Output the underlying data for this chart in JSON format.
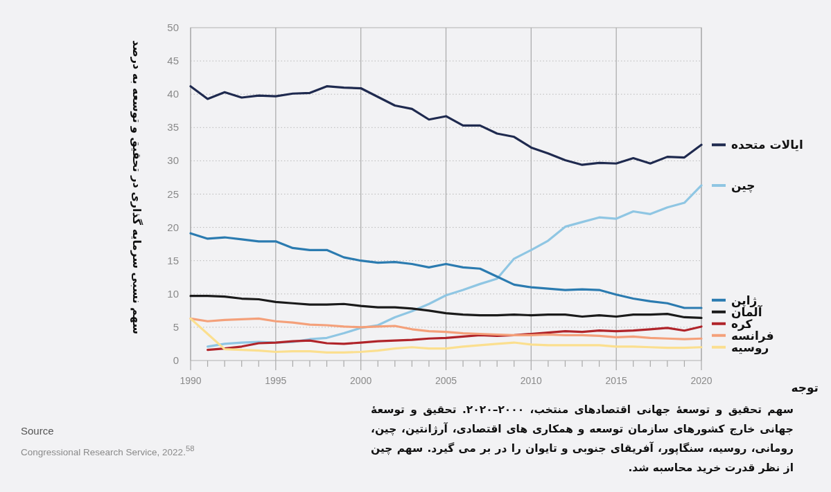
{
  "chart_data": {
    "type": "line",
    "ylabel": "سهم نسبی سرمایه گذاری در تحقیق و توسعه به درصد",
    "annotations": [
      "توجه",
      "سهم تحقیق و توسعهٔ جهانی اقتصادهای منتخب، ۲۰۰۰–۲۰۲۰. تحقیق و توسعهٔ جهانی خارج کشورهای سازمان توسعه و همکاری های اقتصادی، آرژانتین، چین، رومانی، روسیه، سنگاپور، آفریقای جنوبی و تایوان را در بر می گیرد. سهم چین از نظر قدرت خرید محاسبه شد.",
      "Source",
      "Congressional Research Service, 2022.$^{58}$"
    ],
    "x": [
      1990,
      1991,
      1992,
      1993,
      1994,
      1995,
      1996,
      1997,
      1998,
      1999,
      2000,
      2001,
      2002,
      2003,
      2004,
      2005,
      2006,
      2007,
      2008,
      2009,
      2010,
      2011,
      2012,
      2013,
      2014,
      2015,
      2016,
      2017,
      2018,
      2019,
      2020
    ],
    "series": [
      {
        "name": "ایالات متحده",
        "color": "#1f2a4f",
        "values": [
          41.2,
          39.3,
          40.3,
          39.5,
          39.8,
          39.7,
          40.1,
          40.2,
          41.2,
          41.0,
          40.9,
          39.6,
          38.3,
          37.8,
          36.2,
          36.7,
          35.3,
          35.3,
          34.1,
          33.6,
          32.0,
          31.1,
          30.1,
          29.4,
          29.7,
          29.6,
          30.4,
          29.6,
          30.6,
          30.5,
          32.4
        ]
      },
      {
        "name": "چین",
        "color": "#8fc6e3",
        "values": [
          null,
          2.1,
          2.5,
          2.7,
          2.8,
          2.7,
          2.8,
          3.2,
          3.4,
          4.1,
          4.9,
          5.3,
          6.5,
          7.4,
          8.5,
          9.8,
          10.6,
          11.5,
          12.3,
          15.3,
          16.6,
          18.0,
          20.1,
          20.8,
          21.5,
          21.3,
          22.4,
          22.0,
          23.0,
          23.7,
          26.3
        ]
      },
      {
        "name": "ژاپن",
        "color": "#2b7bb0",
        "values": [
          19.1,
          18.3,
          18.5,
          18.2,
          17.9,
          17.9,
          16.9,
          16.6,
          16.6,
          15.5,
          15.0,
          14.7,
          14.8,
          14.5,
          14.0,
          14.5,
          14.0,
          13.8,
          12.6,
          11.4,
          11.0,
          10.8,
          10.6,
          10.7,
          10.6,
          9.9,
          9.3,
          8.9,
          8.6,
          7.9,
          7.9
        ]
      },
      {
        "name": "آلمان",
        "color": "#1a1a1a",
        "values": [
          9.7,
          9.7,
          9.6,
          9.3,
          9.2,
          8.8,
          8.6,
          8.4,
          8.4,
          8.5,
          8.2,
          8.0,
          8.0,
          7.8,
          7.5,
          7.1,
          6.9,
          6.8,
          6.8,
          6.9,
          6.8,
          6.9,
          6.9,
          6.6,
          6.8,
          6.6,
          6.9,
          6.9,
          7.0,
          6.5,
          6.4
        ]
      },
      {
        "name": "کره",
        "color": "#b0242a",
        "values": [
          null,
          1.6,
          1.8,
          2.1,
          2.6,
          2.7,
          2.9,
          3.0,
          2.6,
          2.5,
          2.7,
          2.9,
          3.0,
          3.1,
          3.3,
          3.4,
          3.6,
          3.8,
          3.7,
          3.8,
          4.0,
          4.2,
          4.4,
          4.3,
          4.5,
          4.4,
          4.5,
          4.7,
          4.9,
          4.5,
          5.1
        ]
      },
      {
        "name": "فرانسه",
        "color": "#f4a07a",
        "values": [
          6.3,
          5.9,
          6.1,
          6.2,
          6.3,
          5.9,
          5.7,
          5.4,
          5.3,
          5.1,
          5.0,
          5.1,
          5.2,
          4.7,
          4.4,
          4.3,
          4.1,
          4.0,
          3.9,
          3.8,
          3.8,
          3.9,
          3.8,
          3.8,
          3.7,
          3.5,
          3.6,
          3.4,
          3.3,
          3.2,
          3.3
        ]
      },
      {
        "name": "روسیه",
        "color": "#fbdf8f",
        "values": [
          6.3,
          4.0,
          1.7,
          1.6,
          1.5,
          1.3,
          1.4,
          1.4,
          1.2,
          1.2,
          1.3,
          1.5,
          1.8,
          2.0,
          1.8,
          1.8,
          2.1,
          2.3,
          2.5,
          2.7,
          2.4,
          2.3,
          2.3,
          2.3,
          2.3,
          2.1,
          2.1,
          2.0,
          1.9,
          1.9,
          2.0
        ]
      }
    ],
    "xlim": [
      1990,
      2020
    ],
    "ylim": [
      0,
      50
    ],
    "xticks": [
      1990,
      {
        "value": 1991,
        "label": null
      },
      {
        "value": 1992,
        "label": null
      },
      {
        "value": 1993,
        "label": null
      },
      {
        "value": 1994,
        "label": null
      },
      1995,
      {
        "value": 1996,
        "label": null
      },
      {
        "value": 1997,
        "label": null
      },
      {
        "value": 1998,
        "label": null
      },
      {
        "value": 1999,
        "label": null
      },
      2000,
      {
        "value": 2001,
        "label": null
      },
      {
        "value": 2002,
        "label": null
      },
      {
        "value": 2003,
        "label": null
      },
      {
        "value": 2004,
        "label": null
      },
      2005,
      {
        "value": 2006,
        "label": null
      },
      {
        "value": 2007,
        "label": null
      },
      {
        "value": 2008,
        "label": null
      },
      {
        "value": 2009,
        "label": null
      },
      2010,
      {
        "value": 2011,
        "label": null
      },
      {
        "value": 2012,
        "label": null
      },
      {
        "value": 2013,
        "label": null
      },
      {
        "value": 2014,
        "label": null
      },
      2015,
      {
        "value": 2016,
        "label": null
      },
      {
        "value": 2017,
        "label": null
      },
      {
        "value": 2018,
        "label": null
      },
      {
        "value": 2019,
        "label": null
      },
      2020
    ],
    "yticks": [
      0,
      5,
      10,
      15,
      20,
      25,
      30,
      35,
      40,
      45,
      50
    ],
    "grid": true,
    "legend": "right"
  }
}
